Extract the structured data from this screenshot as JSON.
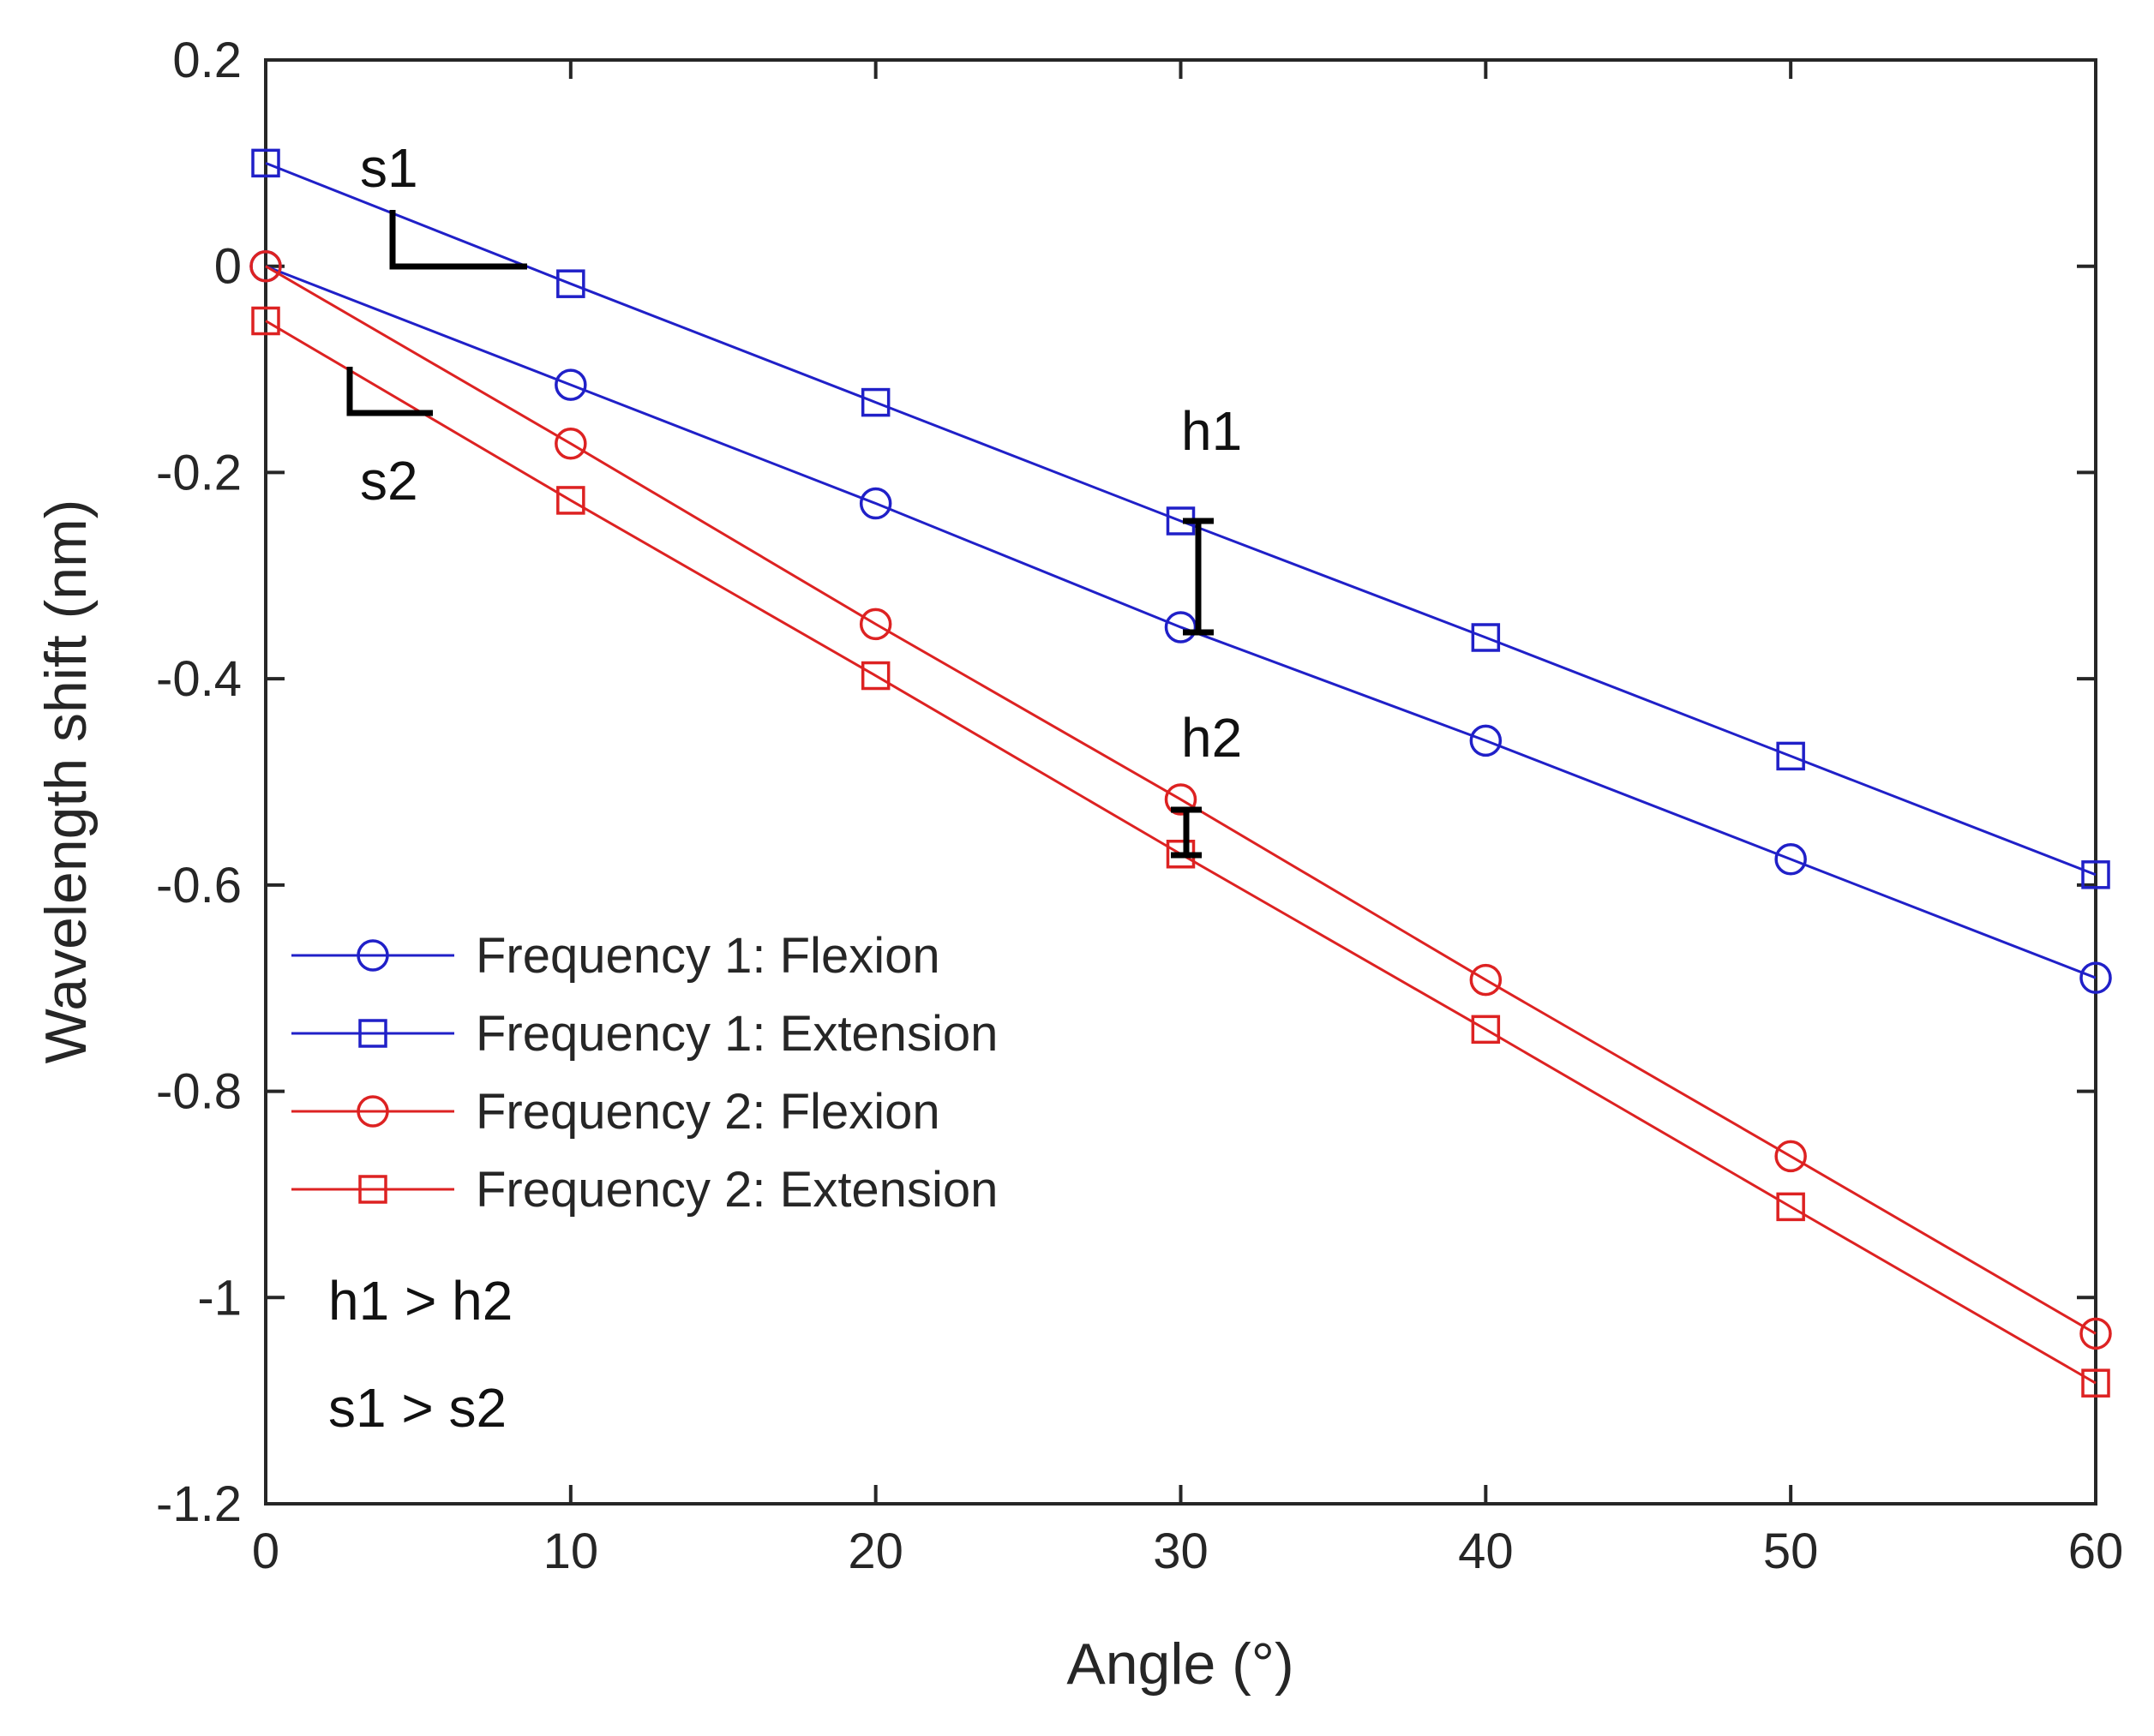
{
  "chart_data": {
    "type": "line",
    "title": "",
    "xlabel": "Angle (°)",
    "ylabel": "Wavelength shift (nm)",
    "xlim": [
      0,
      60
    ],
    "ylim": [
      -1.2,
      0.2
    ],
    "xticks": [
      0,
      10,
      20,
      30,
      40,
      50,
      60
    ],
    "xtick_labels": [
      "0",
      "10",
      "20",
      "30",
      "40",
      "50",
      "60"
    ],
    "yticks": [
      0.2,
      0,
      -0.2,
      -0.4,
      -0.6,
      -0.8,
      -1,
      -1.2
    ],
    "ytick_labels": [
      "0.2",
      "0",
      "-0.2",
      "-0.4",
      "-0.6",
      "-0.8",
      "-1",
      "-1.2"
    ],
    "grid": false,
    "legend_position": "bottom-left",
    "x": [
      0,
      10,
      20,
      30,
      40,
      50,
      60
    ],
    "series": [
      {
        "name": "Frequency 1: Flexion",
        "color": "#2020c8",
        "marker": "circle",
        "values": [
          0.0,
          -0.115,
          -0.23,
          -0.35,
          -0.46,
          -0.575,
          -0.69
        ]
      },
      {
        "name": "Frequency 1: Extension",
        "color": "#2020c8",
        "marker": "square",
        "values": [
          0.1,
          -0.017,
          -0.132,
          -0.247,
          -0.36,
          -0.475,
          -0.59
        ]
      },
      {
        "name": "Frequency 2: Flexion",
        "color": "#dd2222",
        "marker": "circle",
        "values": [
          0.0,
          -0.172,
          -0.347,
          -0.517,
          -0.692,
          -0.863,
          -1.035
        ]
      },
      {
        "name": "Frequency 2: Extension",
        "color": "#dd2222",
        "marker": "square",
        "values": [
          -0.053,
          -0.227,
          -0.397,
          -0.57,
          -0.74,
          -0.912,
          -1.083
        ]
      }
    ],
    "annotations": {
      "s1": "s1",
      "s2": "s2",
      "h1": "h1",
      "h2": "h2",
      "h_relation": "h1 > h2",
      "s_relation": "s1 > s2"
    }
  }
}
